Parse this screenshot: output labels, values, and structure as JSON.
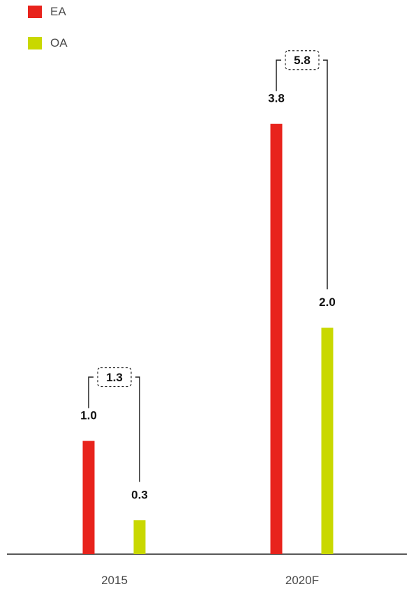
{
  "chart_data": {
    "type": "bar",
    "categories": [
      "2015",
      "2020F"
    ],
    "series": [
      {
        "name": "EA",
        "color": "#e8231c",
        "values": [
          1.0,
          3.8
        ]
      },
      {
        "name": "OA",
        "color": "#c9d800",
        "values": [
          0.3,
          2.0
        ]
      }
    ],
    "value_labels": [
      [
        "1.0",
        "3.8"
      ],
      [
        "0.3",
        "2.0"
      ]
    ],
    "totals": [
      1.3,
      5.8
    ],
    "total_labels": [
      "1.3",
      "5.8"
    ],
    "ylim": [
      0,
      4.34
    ],
    "axis_color": "#222222",
    "legend_position": "top-left"
  }
}
